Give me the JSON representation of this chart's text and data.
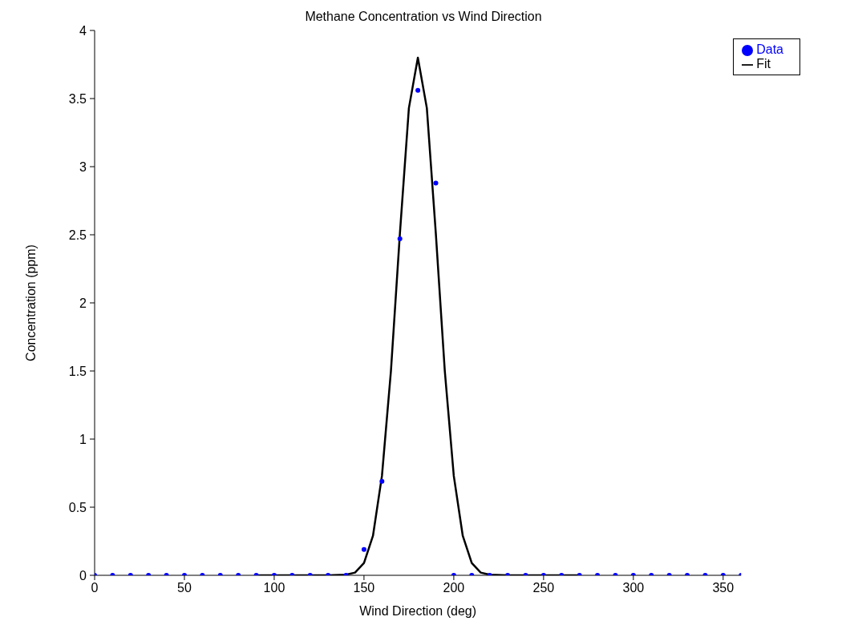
{
  "chart_data": {
    "type": "scatter",
    "title": "Methane Concentration vs Wind Direction",
    "xlabel": "Wind Direction (deg)",
    "ylabel": "Concentration (ppm)",
    "xlim": [
      0,
      360
    ],
    "xticks": [
      0,
      50,
      100,
      150,
      200,
      250,
      300,
      350
    ],
    "ylim": [
      0,
      4
    ],
    "yticks": [
      0,
      0.5,
      1,
      1.5,
      2,
      2.5,
      3,
      3.5,
      4
    ],
    "grid": false,
    "legend": "top right",
    "series": [
      {
        "name": "Data",
        "color": "#0000ff",
        "marker": "circle",
        "x": [
          0,
          10,
          20,
          30,
          40,
          50,
          60,
          70,
          80,
          90,
          100,
          110,
          120,
          130,
          140,
          150,
          160,
          170,
          180,
          190,
          200,
          210,
          220,
          230,
          240,
          250,
          260,
          270,
          280,
          290,
          300,
          310,
          320,
          330,
          340,
          350,
          360
        ],
        "values": [
          0,
          0,
          0,
          0,
          0,
          0,
          0,
          0,
          0,
          0,
          0,
          0,
          0,
          0,
          0,
          0.19,
          0.69,
          2.47,
          3.56,
          2.88,
          0,
          0,
          0,
          0,
          0,
          0,
          0,
          0,
          0,
          0,
          0,
          0,
          0,
          0,
          0,
          0,
          0
        ]
      },
      {
        "name": "Fit",
        "type": "line",
        "color": "#000000",
        "marker": "none",
        "line_style": "solid",
        "x": [
          90,
          100,
          110,
          120,
          130,
          140,
          145,
          150,
          155,
          160,
          165,
          170,
          175,
          180,
          185,
          190,
          195,
          200,
          205,
          210,
          215,
          220,
          230,
          240,
          250,
          260,
          270
        ],
        "values": [
          0,
          0,
          0,
          0,
          0,
          0.005,
          0.02,
          0.09,
          0.29,
          0.73,
          1.5,
          2.51,
          3.43,
          3.8,
          3.43,
          2.51,
          1.5,
          0.73,
          0.29,
          0.09,
          0.02,
          0.005,
          0,
          0,
          0,
          0,
          0
        ]
      }
    ]
  }
}
